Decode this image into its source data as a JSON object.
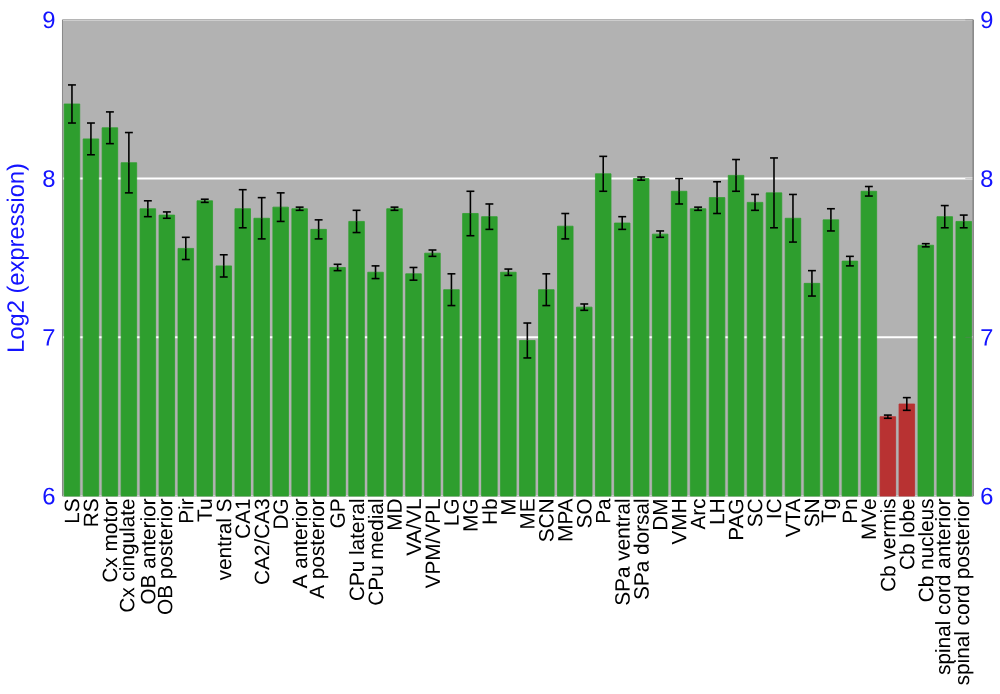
{
  "chart_data": {
    "type": "bar",
    "ylabel": "Log2 (expression)",
    "categories": [
      "LS",
      "RS",
      "Cx motor",
      "Cx cingulate",
      "OB anterior",
      "OB posterior",
      "Pir",
      "Tu",
      "ventral S",
      "CA1",
      "CA2/CA3",
      "DG",
      "A anterior",
      "A posterior",
      "GP",
      "CPu lateral",
      "CPu medial",
      "MD",
      "VA/VL",
      "VPM/VPL",
      "LG",
      "MG",
      "Hb",
      "M",
      "ME",
      "SCN",
      "MPA",
      "SO",
      "Pa",
      "SPa ventral",
      "SPa dorsal",
      "DM",
      "VMH",
      "Arc",
      "LH",
      "PAG",
      "SC",
      "IC",
      "VTA",
      "SN",
      "Tg",
      "Pn",
      "MVe",
      "Cb vermis",
      "Cb lobe",
      "Cb nucleus",
      "spinal cord anterior",
      "spinal cord posterior"
    ],
    "values": [
      8.47,
      8.25,
      8.32,
      8.1,
      7.81,
      7.77,
      7.56,
      7.86,
      7.45,
      7.81,
      7.75,
      7.82,
      7.81,
      7.68,
      7.44,
      7.73,
      7.41,
      7.81,
      7.4,
      7.53,
      7.3,
      7.78,
      7.76,
      7.41,
      6.98,
      7.3,
      7.7,
      7.19,
      8.03,
      7.72,
      8.0,
      7.65,
      7.92,
      7.81,
      7.88,
      8.02,
      7.85,
      7.91,
      7.75,
      7.34,
      7.74,
      7.48,
      7.92,
      6.5,
      6.58,
      7.58,
      7.76,
      7.73
    ],
    "errors": [
      0.12,
      0.1,
      0.1,
      0.19,
      0.05,
      0.02,
      0.07,
      0.01,
      0.07,
      0.12,
      0.13,
      0.09,
      0.01,
      0.06,
      0.02,
      0.07,
      0.04,
      0.01,
      0.04,
      0.02,
      0.1,
      0.14,
      0.08,
      0.02,
      0.11,
      0.1,
      0.08,
      0.02,
      0.11,
      0.04,
      0.01,
      0.02,
      0.08,
      0.01,
      0.1,
      0.1,
      0.05,
      0.22,
      0.15,
      0.08,
      0.07,
      0.03,
      0.03,
      0.01,
      0.04,
      0.01,
      0.07,
      0.04
    ],
    "colors": [
      "#2e9e2e",
      "#2e9e2e",
      "#2e9e2e",
      "#2e9e2e",
      "#2e9e2e",
      "#2e9e2e",
      "#2e9e2e",
      "#2e9e2e",
      "#2e9e2e",
      "#2e9e2e",
      "#2e9e2e",
      "#2e9e2e",
      "#2e9e2e",
      "#2e9e2e",
      "#2e9e2e",
      "#2e9e2e",
      "#2e9e2e",
      "#2e9e2e",
      "#2e9e2e",
      "#2e9e2e",
      "#2e9e2e",
      "#2e9e2e",
      "#2e9e2e",
      "#2e9e2e",
      "#2e9e2e",
      "#2e9e2e",
      "#2e9e2e",
      "#2e9e2e",
      "#2e9e2e",
      "#2e9e2e",
      "#2e9e2e",
      "#2e9e2e",
      "#2e9e2e",
      "#2e9e2e",
      "#2e9e2e",
      "#2e9e2e",
      "#2e9e2e",
      "#2e9e2e",
      "#2e9e2e",
      "#2e9e2e",
      "#2e9e2e",
      "#2e9e2e",
      "#2e9e2e",
      "#b83232",
      "#b83232",
      "#2e9e2e",
      "#2e9e2e",
      "#2e9e2e"
    ],
    "ylim": [
      6,
      9
    ],
    "yticks": [
      6,
      7,
      8,
      9
    ],
    "y2lim": [
      6,
      9
    ],
    "y2ticks": [
      6,
      7,
      8,
      9
    ],
    "grid": "y"
  }
}
